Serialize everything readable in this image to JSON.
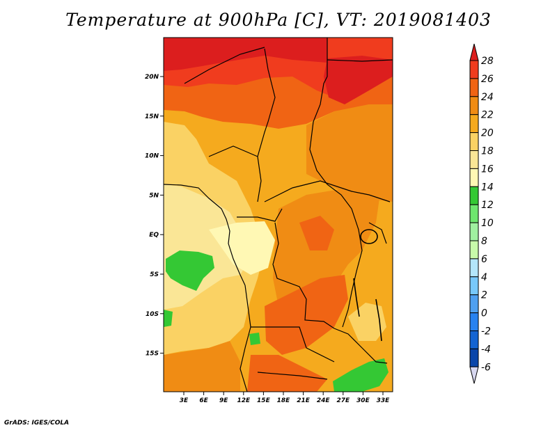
{
  "title": "Temperature at 900hPa [C], VT: 2019081403",
  "credit": "GrADS: IGES/COLA",
  "map": {
    "variable": "Temperature",
    "level": "900hPa",
    "units": "C",
    "valid_time": "2019081403",
    "lat_ticks": [
      "20N",
      "15N",
      "10N",
      "5N",
      "EQ",
      "5S",
      "10S",
      "15S"
    ],
    "lon_ticks": [
      "3E",
      "6E",
      "9E",
      "12E",
      "15E",
      "18E",
      "21E",
      "24E",
      "27E",
      "30E",
      "33E"
    ]
  },
  "colorbar": {
    "levels": [
      "28",
      "26",
      "24",
      "22",
      "20",
      "18",
      "16",
      "14",
      "12",
      "10",
      "8",
      "6",
      "4",
      "2",
      "0",
      "-2",
      "-4",
      "-6"
    ],
    "colors": [
      "#dc1e1e",
      "#f03c1e",
      "#f06414",
      "#f08c14",
      "#f5aa1e",
      "#fad264",
      "#fae696",
      "#fff8b4",
      "#34c834",
      "#6ee66e",
      "#a0f0a0",
      "#c8faaa",
      "#b4e6fa",
      "#78c8fa",
      "#50a0f0",
      "#2882f0",
      "#1464d2",
      "#0a46aa",
      "#0a0a78"
    ]
  }
}
